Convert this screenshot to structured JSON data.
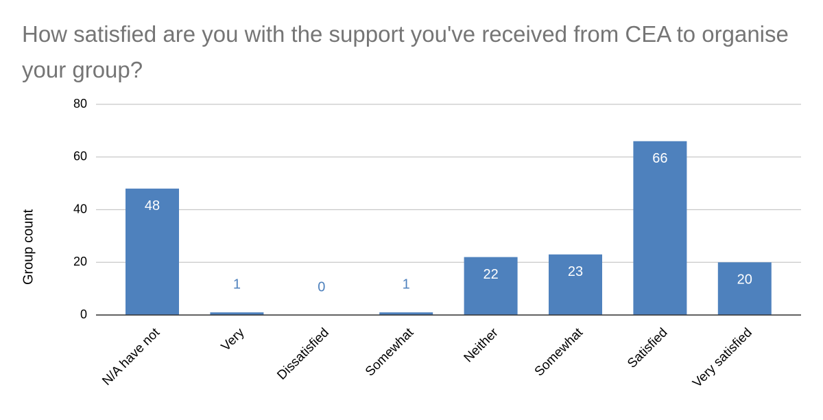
{
  "chart_data": {
    "type": "bar",
    "title": "How satisfied are you with the support you've received from CEA to organise your group?",
    "y_label": "Group count",
    "categories": [
      "N/A have not",
      "Very",
      "Dissatisfied",
      "Somewhat",
      "Neither",
      "Somewhat",
      "Satisfied",
      "Very satisfied"
    ],
    "values": [
      48,
      1,
      0,
      1,
      22,
      23,
      66,
      20
    ],
    "color": "#4e81bd",
    "ylim": [
      0,
      80
    ],
    "yticks": [
      0,
      20,
      40,
      60,
      80
    ],
    "grid": true
  }
}
